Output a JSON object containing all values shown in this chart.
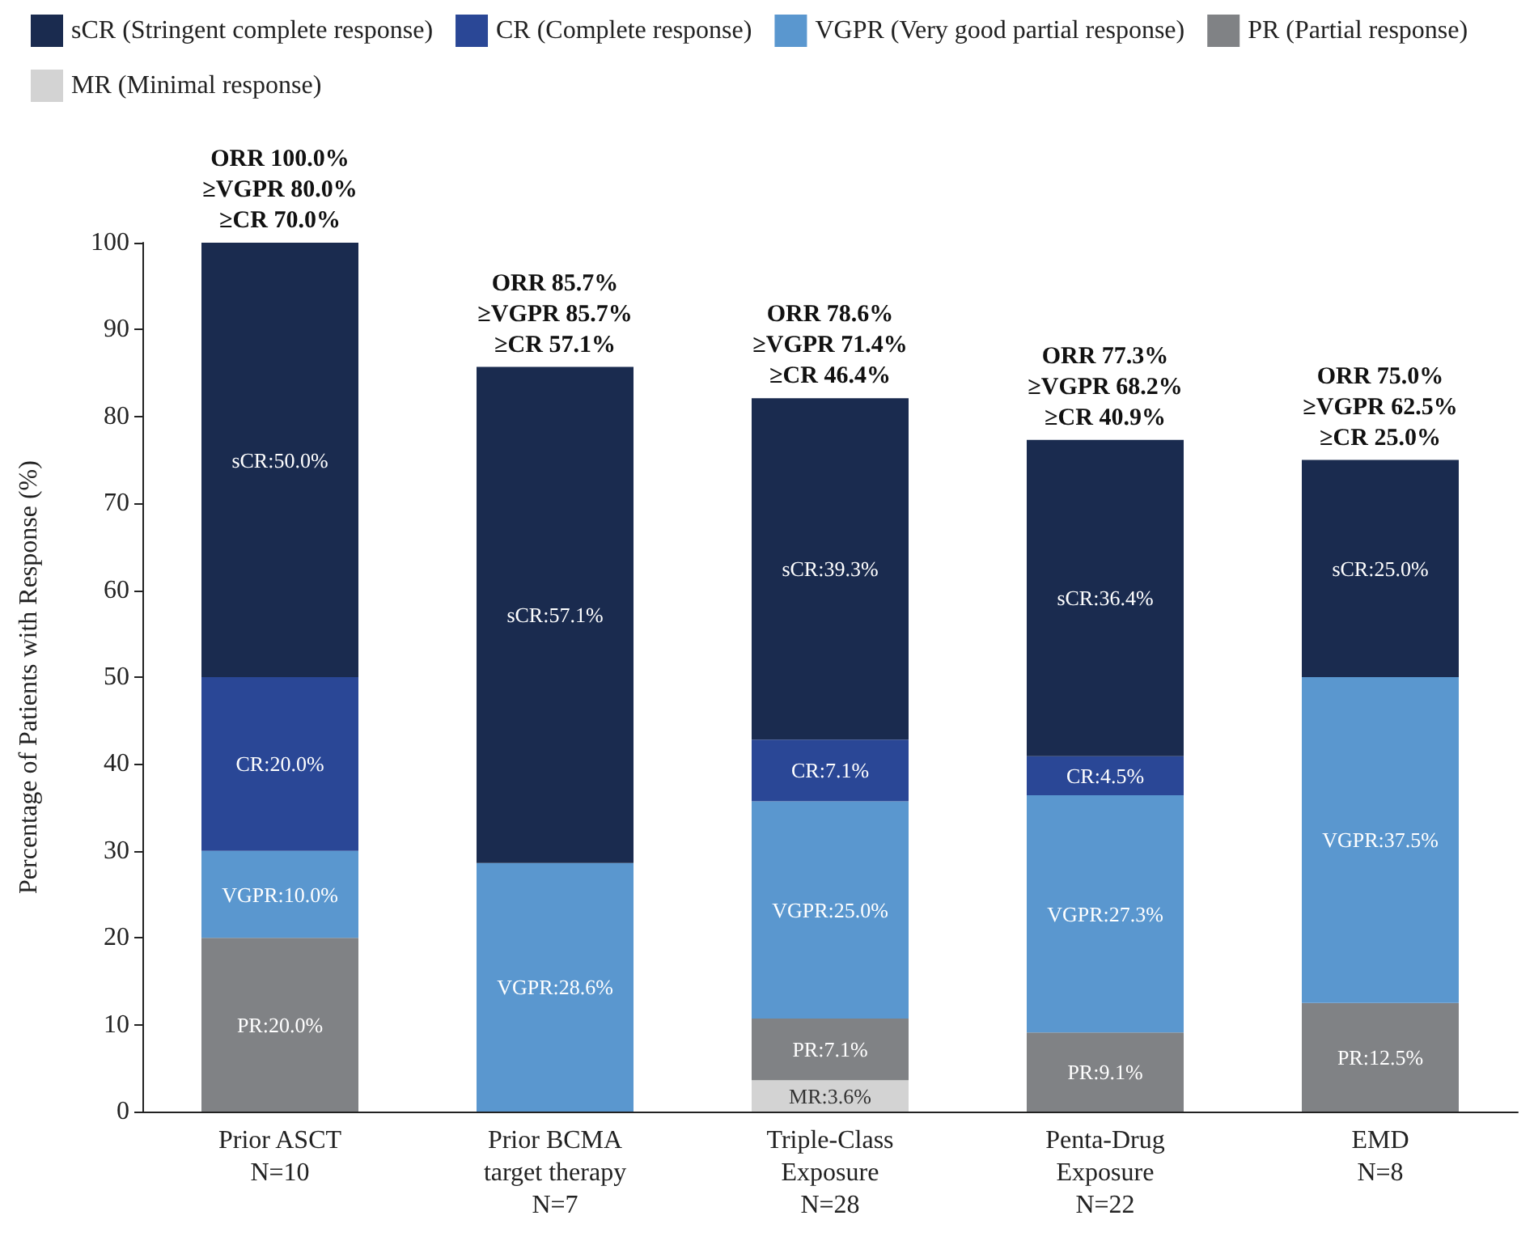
{
  "chart_data": {
    "type": "bar",
    "stacked": true,
    "ylabel": "Percentage of Patients with Response (%)",
    "categories": [
      "Prior ASCT\nN=10",
      "Prior BCMA\ntarget therapy\nN=7",
      "Triple-Class\nExposure\nN=28",
      "Penta-Drug\nExposure\nN=22",
      "EMD\nN=8"
    ],
    "series": [
      {
        "name": "MR (Minimal response)",
        "color": "#d3d3d3",
        "values": [
          null,
          null,
          3.6,
          null,
          null
        ],
        "value_labels": [
          null,
          null,
          "MR:3.6%",
          null,
          null
        ]
      },
      {
        "name": "PR (Partial response)",
        "color": "#808285",
        "values": [
          20.0,
          null,
          7.1,
          9.1,
          12.5
        ],
        "value_labels": [
          "PR:20.0%",
          null,
          "PR:7.1%",
          "PR:9.1%",
          "PR:12.5%"
        ]
      },
      {
        "name": "VGPR (Very good partial response)",
        "color": "#5a97cf",
        "values": [
          10.0,
          28.6,
          25.0,
          27.3,
          37.5
        ],
        "value_labels": [
          "VGPR:10.0%",
          "VGPR:28.6%",
          "VGPR:25.0%",
          "VGPR:27.3%",
          "VGPR:37.5%"
        ]
      },
      {
        "name": "CR (Complete response)",
        "color": "#2a4796",
        "values": [
          20.0,
          null,
          7.1,
          4.5,
          null
        ],
        "value_labels": [
          "CR:20.0%",
          null,
          "CR:7.1%",
          "CR:4.5%",
          null
        ]
      },
      {
        "name": "sCR (Stringent complete response)",
        "color": "#1a2b4f",
        "values": [
          50.0,
          57.1,
          39.3,
          36.4,
          25.0
        ],
        "value_labels": [
          "sCR:50.0%",
          "sCR:57.1%",
          "sCR:39.3%",
          "sCR:36.4%",
          "sCR:25.0%"
        ]
      }
    ],
    "totals": [
      "ORR 100.0%\n≥VGPR 80.0%\n≥CR 70.0%",
      "ORR 85.7%\n≥VGPR 85.7%\n≥CR 57.1%",
      "ORR 78.6%\n≥VGPR 71.4%\n≥CR 46.4%",
      "ORR 77.3%\n≥VGPR 68.2%\n≥CR 40.9%",
      "ORR 75.0%\n≥VGPR 62.5%\n≥CR 25.0%"
    ],
    "ylim": [
      0,
      100
    ],
    "yticks": [
      0,
      10,
      20,
      30,
      40,
      50,
      60,
      70,
      80,
      90,
      100
    ],
    "grid": false,
    "legend": "top"
  }
}
